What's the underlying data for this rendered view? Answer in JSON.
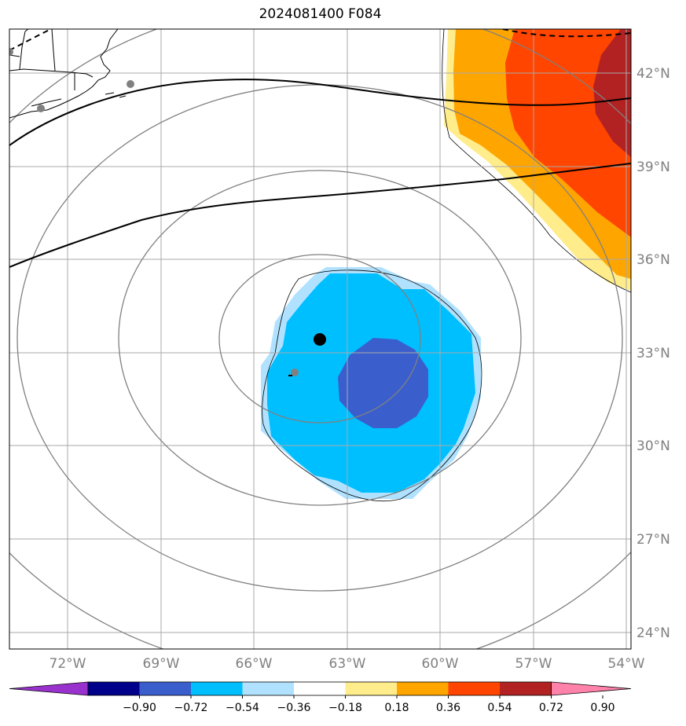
{
  "title": "2024081400 F084",
  "longitude_labels": [
    "72°W",
    "69°W",
    "66°W",
    "63°W",
    "60°W",
    "57°W",
    "54°W"
  ],
  "latitude_labels": [
    "42°N",
    "39°N",
    "36°N",
    "33°N",
    "30°N",
    "27°N",
    "24°N"
  ],
  "colorbar": {
    "tick_labels": [
      "−0.90",
      "−0.72",
      "−0.54",
      "−0.36",
      "−0.18",
      "0.18",
      "0.36",
      "0.54",
      "0.72",
      "0.90"
    ],
    "colors": [
      "#9932cc",
      "#00008b",
      "#3a5fcd",
      "#00bfff",
      "#b0e2ff",
      "#ffffff",
      "#ffec8b",
      "#ffa500",
      "#ff4500",
      "#b22222",
      "#ff82ab"
    ]
  },
  "colors": {
    "gridline": "#a9a9a9",
    "range_rings": "#808080",
    "contours": "#000000",
    "storm_center": "#000000",
    "city_marker": "#808080"
  }
}
